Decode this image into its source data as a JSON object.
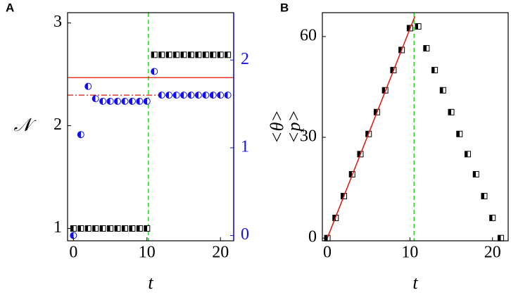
{
  "chart_data": [
    {
      "type": "scatter",
      "panel": "A",
      "xlabel": "t",
      "ylabel": "𝒩",
      "xlim": [
        -0.8,
        21.8
      ],
      "xticks": [
        0,
        10,
        20
      ],
      "ylim": [
        0.88,
        3.1
      ],
      "yticks": [
        1,
        2,
        3
      ],
      "y2lim": [
        -0.06,
        2.54
      ],
      "y2ticks": [
        0,
        1,
        2
      ],
      "y2color": "#1010f0",
      "series": [
        {
          "marker": "half-square",
          "color": "#000000",
          "x": [
            0,
            1,
            2,
            3,
            4,
            5,
            6,
            7,
            8,
            9,
            10,
            11,
            12,
            13,
            14,
            15,
            16,
            17,
            18,
            19,
            20,
            21
          ],
          "values": [
            1,
            1,
            1,
            1,
            1,
            1,
            1,
            1,
            1,
            1,
            1,
            2.69,
            2.69,
            2.69,
            2.69,
            2.69,
            2.69,
            2.69,
            2.69,
            2.69,
            2.69,
            2.69
          ]
        },
        {
          "marker": "half-circle",
          "color": "#1010f0",
          "axis": "y2",
          "x": [
            0,
            1,
            2,
            3,
            4,
            5,
            6,
            7,
            8,
            9,
            10,
            11,
            12,
            13,
            14,
            15,
            16,
            17,
            18,
            19,
            20,
            21
          ],
          "values": [
            0,
            1.15,
            1.7,
            1.56,
            1.53,
            1.53,
            1.53,
            1.53,
            1.53,
            1.53,
            1.53,
            1.87,
            1.6,
            1.6,
            1.6,
            1.6,
            1.6,
            1.6,
            1.6,
            1.6,
            1.6,
            1.6
          ]
        }
      ],
      "hlines": [
        {
          "y": 1.8,
          "axis": "y2",
          "color": "#e3120b",
          "style": "solid"
        },
        {
          "y": 1.6,
          "axis": "y2",
          "color": "#e3120b",
          "style": "dashdot"
        }
      ],
      "vlines": [
        {
          "x": 10.2,
          "color": "#22dd22",
          "style": "dashed"
        }
      ]
    },
    {
      "type": "scatter",
      "panel": "B",
      "xlabel": "t",
      "ylabels": [
        "<θ>",
        "<p>"
      ],
      "xlim": [
        -0.6,
        21.9
      ],
      "xticks": [
        0,
        10,
        20
      ],
      "ylim": [
        -0.8,
        67.1
      ],
      "yticks": [
        0,
        30,
        60
      ],
      "series": [
        {
          "marker": "half-square",
          "color": "#000000",
          "x": [
            0,
            1,
            2,
            3,
            4,
            5,
            6,
            7,
            8,
            9,
            10,
            11,
            12,
            13,
            14,
            15,
            16,
            17,
            18,
            19,
            20,
            21
          ],
          "values": [
            0,
            6,
            12.5,
            19,
            25,
            31,
            37.5,
            44,
            50,
            56,
            62.5,
            63,
            56.5,
            50,
            44,
            37.5,
            31,
            25,
            19,
            12.5,
            6,
            0
          ]
        },
        {
          "marker": "line",
          "color": "#e3120b",
          "x": [
            0,
            10.6
          ],
          "values": [
            0,
            66
          ]
        }
      ],
      "vlines": [
        {
          "x": 10.5,
          "color": "#22dd22",
          "style": "dashed"
        }
      ]
    }
  ]
}
